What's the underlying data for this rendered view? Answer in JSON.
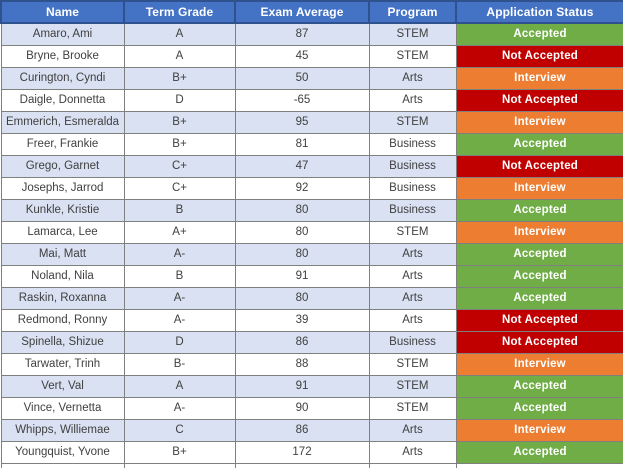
{
  "table": {
    "columns": [
      "Name",
      "Term Grade",
      "Exam Average",
      "Program",
      "Application Status"
    ],
    "rows": [
      {
        "name": "Amaro, Ami",
        "term_grade": "A",
        "exam_average": "87",
        "program": "STEM",
        "status": "Accepted"
      },
      {
        "name": "Bryne, Brooke",
        "term_grade": "A",
        "exam_average": "45",
        "program": "STEM",
        "status": "Not Accepted"
      },
      {
        "name": "Curington, Cyndi",
        "term_grade": "B+",
        "exam_average": "50",
        "program": "Arts",
        "status": "Interview"
      },
      {
        "name": "Daigle, Donnetta",
        "term_grade": "D",
        "exam_average": "-65",
        "program": "Arts",
        "status": "Not Accepted"
      },
      {
        "name": "Emmerich, Esmeralda",
        "term_grade": "B+",
        "exam_average": "95",
        "program": "STEM",
        "status": "Interview"
      },
      {
        "name": "Freer, Frankie",
        "term_grade": "B+",
        "exam_average": "81",
        "program": "Business",
        "status": "Accepted"
      },
      {
        "name": "Grego, Garnet",
        "term_grade": "C+",
        "exam_average": "47",
        "program": "Business",
        "status": "Not Accepted"
      },
      {
        "name": "Josephs, Jarrod",
        "term_grade": "C+",
        "exam_average": "92",
        "program": "Business",
        "status": "Interview"
      },
      {
        "name": "Kunkle, Kristie",
        "term_grade": "B",
        "exam_average": "80",
        "program": "Business",
        "status": "Accepted"
      },
      {
        "name": "Lamarca, Lee",
        "term_grade": "A+",
        "exam_average": "80",
        "program": "STEM",
        "status": "Interview"
      },
      {
        "name": "Mai, Matt",
        "term_grade": "A-",
        "exam_average": "80",
        "program": "Arts",
        "status": "Accepted"
      },
      {
        "name": "Noland, Nila",
        "term_grade": "B",
        "exam_average": "91",
        "program": "Arts",
        "status": "Accepted"
      },
      {
        "name": "Raskin, Roxanna",
        "term_grade": "A-",
        "exam_average": "80",
        "program": "Arts",
        "status": "Accepted"
      },
      {
        "name": "Redmond, Ronny",
        "term_grade": "A-",
        "exam_average": "39",
        "program": "Arts",
        "status": "Not Accepted"
      },
      {
        "name": "Spinella, Shizue",
        "term_grade": "D",
        "exam_average": "86",
        "program": "Business",
        "status": "Not Accepted"
      },
      {
        "name": "Tarwater, Trinh",
        "term_grade": "B-",
        "exam_average": "88",
        "program": "STEM",
        "status": "Interview"
      },
      {
        "name": "Vert, Val",
        "term_grade": "A",
        "exam_average": "91",
        "program": "STEM",
        "status": "Accepted"
      },
      {
        "name": "Vince, Vernetta",
        "term_grade": "A-",
        "exam_average": "90",
        "program": "STEM",
        "status": "Accepted"
      },
      {
        "name": "Whipps, Williemae",
        "term_grade": "C",
        "exam_average": "86",
        "program": "Arts",
        "status": "Interview"
      },
      {
        "name": "Youngquist, Yvone",
        "term_grade": "B+",
        "exam_average": "172",
        "program": "Arts",
        "status": "Accepted"
      }
    ],
    "colors": {
      "header_bg": "#4472C4",
      "header_border": "#2F528F",
      "header_text": "#FFFFFF",
      "stripe_row_bg": "#D9E1F2",
      "plain_row_bg": "#FFFFFF",
      "body_border": "#7F7F7F",
      "body_text": "#404040",
      "status": {
        "Accepted": "#70AD47",
        "Not Accepted": "#C00000",
        "Interview": "#ED7D31"
      }
    }
  }
}
